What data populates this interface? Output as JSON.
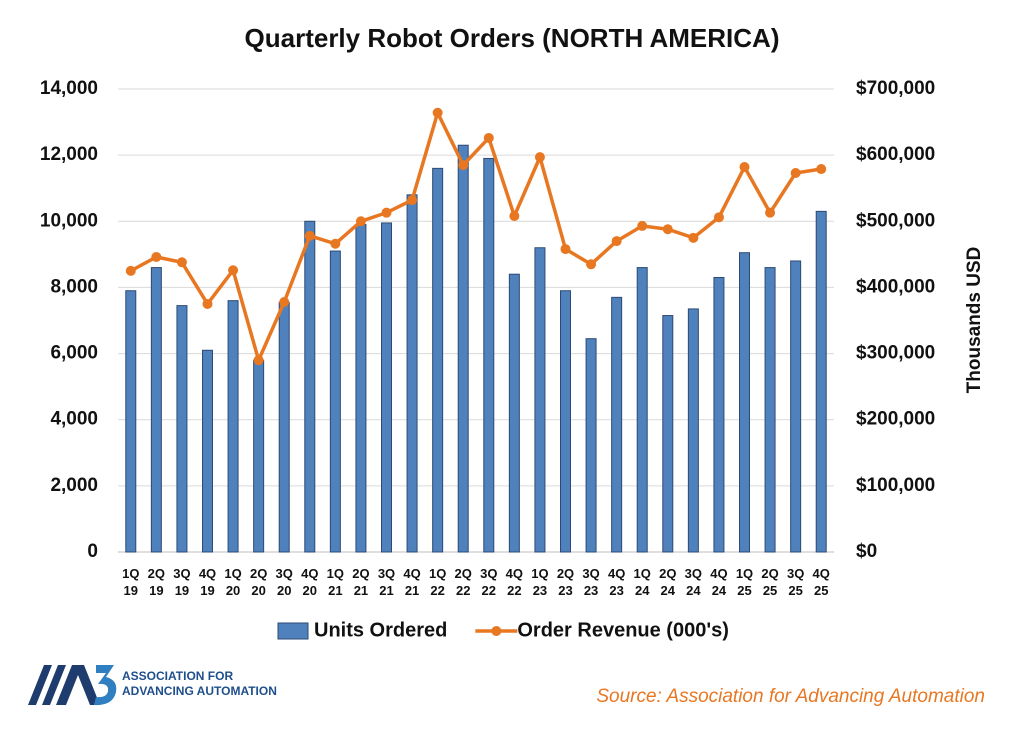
{
  "chart_data": {
    "type": "bar_line",
    "title": "Quarterly Robot Orders (NORTH AMERICA)",
    "y2label": "Thousands USD",
    "categories": [
      "1Q 19",
      "2Q 19",
      "3Q 19",
      "4Q 19",
      "1Q 20",
      "2Q 20",
      "3Q 20",
      "4Q 20",
      "1Q 21",
      "2Q 21",
      "3Q 21",
      "4Q 21",
      "1Q 22",
      "2Q 22",
      "3Q 22",
      "4Q 22",
      "1Q 23",
      "2Q 23",
      "3Q 23",
      "4Q 23",
      "1Q 24",
      "2Q 24",
      "3Q 24",
      "4Q 24",
      "1Q 25",
      "2Q 25",
      "3Q 25",
      "4Q 25"
    ],
    "series": [
      {
        "name": "Units Ordered",
        "type": "bar",
        "color": "#4f81bd",
        "axis": "y",
        "values": [
          7900,
          8600,
          7450,
          6100,
          7600,
          5800,
          7550,
          10000,
          9100,
          9900,
          9950,
          10800,
          11600,
          12300,
          11900,
          8400,
          9200,
          7900,
          6450,
          7700,
          8600,
          7150,
          7350,
          8300,
          9050,
          8600,
          8800,
          10300
        ]
      },
      {
        "name": "Order Revenue (000's)",
        "type": "line",
        "color": "#e87722",
        "axis": "y2",
        "values": [
          425000,
          446000,
          438000,
          375000,
          426000,
          290000,
          378000,
          478000,
          466000,
          500000,
          513000,
          532000,
          664000,
          585000,
          626000,
          508000,
          597000,
          458000,
          435000,
          470000,
          493000,
          488000,
          475000,
          506000,
          582000,
          513000,
          573000,
          579000
        ]
      }
    ],
    "ylim": [
      0,
      14000
    ],
    "yticks": [
      0,
      {
        "value": 2000,
        "label": "2,000"
      },
      {
        "value": 4000,
        "label": "4,000"
      },
      {
        "value": 6000,
        "label": "6,000"
      },
      {
        "value": 8000,
        "label": "8,000"
      },
      {
        "value": 10000,
        "label": "10,000"
      },
      {
        "value": 12000,
        "label": "12,000"
      },
      {
        "value": 14000,
        "label": "14,000"
      }
    ],
    "y2lim": [
      0,
      700000
    ],
    "y2ticks": [
      {
        "value": 0,
        "label": "$0"
      },
      {
        "value": 100000,
        "label": "$100,000"
      },
      {
        "value": 200000,
        "label": "$200,000"
      },
      {
        "value": 300000,
        "label": "$300,000"
      },
      {
        "value": 400000,
        "label": "$400,000"
      },
      {
        "value": 500000,
        "label": "$500,000"
      },
      {
        "value": 600000,
        "label": "$600,000"
      },
      {
        "value": 700000,
        "label": "$700,000"
      }
    ],
    "grid": true,
    "legend": "bottom",
    "logo_text": [
      "ASSOCIATION FOR",
      "ADVANCING AUTOMATION"
    ],
    "source": "Source: Association for Advancing Automation"
  }
}
